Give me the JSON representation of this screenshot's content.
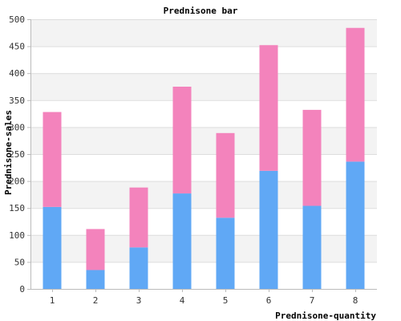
{
  "chart_data": {
    "type": "bar",
    "stacked": true,
    "title": "Prednisone bar",
    "xlabel": "Prednisone-quantity",
    "ylabel": "Prednisone-sales",
    "categories": [
      "1",
      "2",
      "3",
      "4",
      "5",
      "6",
      "7",
      "8"
    ],
    "series": [
      {
        "color": "#60a8f5",
        "values": [
          152,
          35,
          77,
          177,
          132,
          219,
          154,
          236
        ]
      },
      {
        "color": "#f383bc",
        "values": [
          176,
          76,
          111,
          198,
          157,
          233,
          178,
          248
        ]
      }
    ],
    "ylim": [
      0,
      500
    ],
    "yticks": [
      0,
      50,
      100,
      150,
      200,
      250,
      300,
      350,
      400,
      450,
      500
    ],
    "grid": true,
    "band_colors": [
      "#ffffff",
      "#f3f3f3"
    ],
    "legend": "none"
  }
}
